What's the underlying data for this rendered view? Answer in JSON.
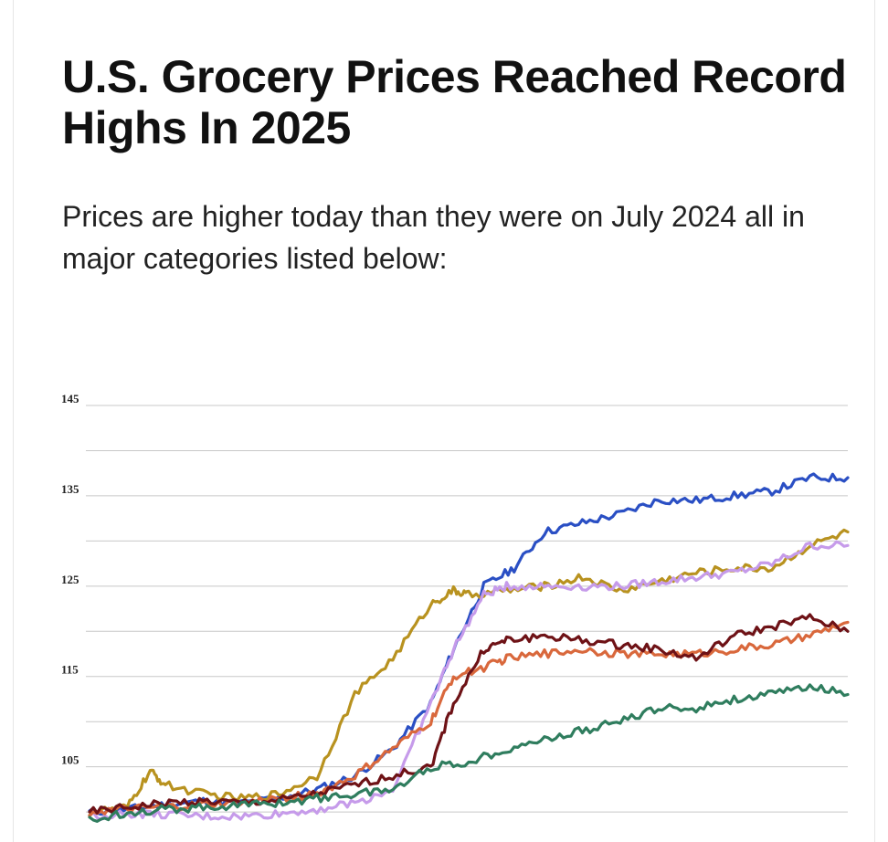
{
  "chart_data": {
    "type": "line",
    "title": "U.S. Grocery Prices Reached Record Highs In 2025",
    "subtitle": "Prices are higher today than they were on July 2024 all in major categories listed below:",
    "xlabel": "",
    "ylabel": "",
    "ylim": [
      99,
      145
    ],
    "xlim": [
      0,
      100
    ],
    "yticks": [
      {
        "value": 145,
        "label": "145"
      },
      {
        "value": 140,
        "label": ""
      },
      {
        "value": 135,
        "label": "135"
      },
      {
        "value": 130,
        "label": ""
      },
      {
        "value": 125,
        "label": "125"
      },
      {
        "value": 120,
        "label": ""
      },
      {
        "value": 115,
        "label": "115"
      },
      {
        "value": 110,
        "label": ""
      },
      {
        "value": 105,
        "label": "105"
      },
      {
        "value": 100,
        "label": ""
      }
    ],
    "grid": true,
    "series": [
      {
        "name": "",
        "color": "#2a4fc4",
        "x": [
          0,
          5,
          10,
          15,
          20,
          25,
          30,
          35,
          40,
          45,
          48,
          52,
          56,
          60,
          65,
          70,
          75,
          80,
          85,
          90,
          95,
          100
        ],
        "y": [
          100,
          100.3,
          100.8,
          101.2,
          101,
          101.5,
          102.5,
          104,
          107,
          112,
          118,
          125,
          127,
          131,
          132,
          133,
          134.5,
          134.5,
          135,
          135.5,
          137,
          137
        ]
      },
      {
        "name": "",
        "color": "#b8921f",
        "x": [
          0,
          5,
          8,
          10,
          15,
          20,
          25,
          30,
          35,
          40,
          45,
          48,
          50,
          55,
          60,
          65,
          70,
          75,
          80,
          85,
          90,
          95,
          100
        ],
        "y": [
          100,
          100.5,
          104.5,
          103,
          102,
          101.5,
          102,
          104,
          113,
          117,
          123,
          124.5,
          124,
          124.5,
          125,
          126,
          124.5,
          125.5,
          126.5,
          127,
          127,
          129.5,
          131
        ]
      },
      {
        "name": "",
        "color": "#c69bea",
        "x": [
          0,
          5,
          10,
          15,
          20,
          25,
          30,
          35,
          40,
          45,
          48,
          52,
          55,
          60,
          65,
          70,
          75,
          80,
          85,
          90,
          95,
          100
        ],
        "y": [
          99.5,
          99.8,
          99.7,
          99.5,
          99.5,
          99.8,
          100.3,
          101,
          102.5,
          112,
          118,
          124,
          125,
          125,
          125,
          125,
          125.5,
          126,
          126.5,
          127.5,
          129.5,
          129.5
        ]
      },
      {
        "name": "",
        "color": "#d9683c",
        "x": [
          0,
          5,
          10,
          15,
          20,
          25,
          30,
          35,
          40,
          45,
          48,
          52,
          55,
          60,
          65,
          70,
          75,
          80,
          85,
          90,
          95,
          100
        ],
        "y": [
          100,
          100.3,
          100.5,
          100.8,
          101,
          101.5,
          102,
          104,
          107,
          110,
          115,
          116,
          117,
          117.5,
          118,
          117.5,
          117.5,
          117.5,
          118,
          118.5,
          119.5,
          121
        ]
      },
      {
        "name": "",
        "color": "#6e1216",
        "x": [
          0,
          5,
          10,
          15,
          20,
          25,
          30,
          35,
          40,
          45,
          48,
          52,
          55,
          60,
          65,
          70,
          75,
          80,
          85,
          90,
          95,
          100
        ],
        "y": [
          100,
          100.5,
          101,
          101.2,
          101,
          101.3,
          102,
          103,
          104,
          105,
          112,
          118,
          119,
          119.5,
          119,
          118.5,
          118,
          117,
          119.5,
          120.5,
          121.5,
          120
        ]
      },
      {
        "name": "",
        "color": "#2f7d5e",
        "x": [
          0,
          5,
          10,
          15,
          20,
          25,
          30,
          35,
          40,
          45,
          50,
          55,
          60,
          65,
          70,
          75,
          80,
          85,
          90,
          95,
          100
        ],
        "y": [
          99,
          100,
          100.3,
          100.5,
          100.8,
          101,
          101.5,
          102,
          102.5,
          105,
          105.5,
          107,
          108,
          109,
          110,
          111.5,
          111.5,
          112.5,
          113,
          114,
          113
        ]
      }
    ]
  }
}
